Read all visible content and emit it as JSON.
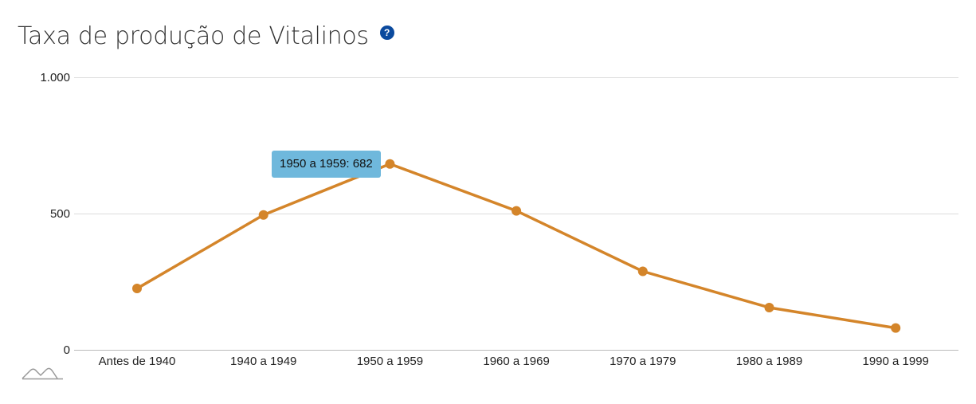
{
  "title": "Taxa de produção de Vitalinos",
  "help_icon": {
    "name": "help-icon",
    "glyph": "?"
  },
  "tooltip_text": "1950 a 1959: 682",
  "logo": {
    "name": "mountain-logo-icon"
  },
  "colors": {
    "line": "#d4852a",
    "grid": "#dddddd",
    "axis": "#bbbbbb",
    "tooltip_bg": "#6fb8dc",
    "help_bg": "#0b4a9e"
  },
  "chart_data": {
    "type": "line",
    "title": "Taxa de produção de Vitalinos",
    "xlabel": "",
    "ylabel": "",
    "categories": [
      "Antes de 1940",
      "1940 a 1949",
      "1950 a 1959",
      "1960 a 1969",
      "1970 a 1979",
      "1980 a 1989",
      "1990 a 1999"
    ],
    "values": [
      225,
      495,
      682,
      510,
      288,
      155,
      80
    ],
    "ylim": [
      0,
      1000
    ],
    "yticks": [
      0,
      500,
      1000
    ],
    "ytick_labels": [
      "0",
      "500",
      "1.000"
    ],
    "grid": true,
    "legend": "none"
  }
}
